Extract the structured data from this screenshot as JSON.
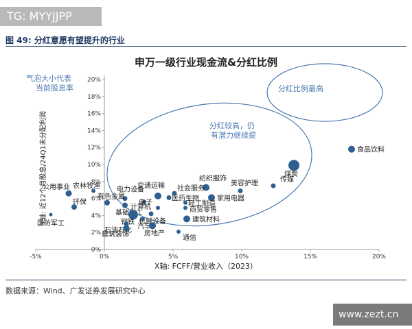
{
  "watermark_top": "TG: MYYJJPP",
  "figure_caption": "图 49:  分红意愿有望提升的行业",
  "source": "数据来源：Wind、广发证券发展研究中心",
  "watermark_bottom": "www.zezt.cn",
  "colors": {
    "bubble": "#2e5f8f",
    "accent": "#4a78b0",
    "navy": "#1f3b63"
  },
  "chart_data": {
    "type": "scatter",
    "title": "申万一级行业现金流&分红比例",
    "xlabel": "X轴: FCFF/营业收入（2023）",
    "ylabel": "Y轴: 近12个月股息/24Q1未分配利润",
    "xlim": [
      -5,
      20
    ],
    "ylim": [
      0,
      20
    ],
    "x_ticks": [
      "-5%",
      "0%",
      "5%",
      "10%",
      "15%",
      "20%"
    ],
    "y_ticks": [
      "0%",
      "2%",
      "4%",
      "6%",
      "8%",
      "10%",
      "12%",
      "14%",
      "16%",
      "18%",
      "20%"
    ],
    "grid": false,
    "bubble_legend": "气泡大小代表当前股息率",
    "annotations": [
      "分红比例最高",
      "分红较高，仍有潜力继续提"
    ],
    "points": [
      {
        "name": "食品饮料",
        "x": 18.0,
        "y": 11.8,
        "size": 5
      },
      {
        "name": "煤炭",
        "x": 13.8,
        "y": 9.9,
        "size": 8
      },
      {
        "name": "传媒",
        "x": 12.3,
        "y": 7.5,
        "size": 3.5
      },
      {
        "name": "美容护理",
        "x": 9.9,
        "y": 6.9,
        "size": 3.5
      },
      {
        "name": "纺织服饰",
        "x": 7.4,
        "y": 7.3,
        "size": 5
      },
      {
        "name": "家用电器",
        "x": 7.8,
        "y": 6.1,
        "size": 5
      },
      {
        "name": "社会服务",
        "x": 5.1,
        "y": 6.6,
        "size": 3.5
      },
      {
        "name": "医药生物",
        "x": 4.7,
        "y": 6.1,
        "size": 3.5
      },
      {
        "name": "轻工制造",
        "x": 5.9,
        "y": 5.5,
        "size": 3
      },
      {
        "name": "商贸零售",
        "x": 5.9,
        "y": 4.9,
        "size": 3
      },
      {
        "name": "建筑材料",
        "x": 6.0,
        "y": 3.6,
        "size": 5
      },
      {
        "name": "交通运输",
        "x": 3.9,
        "y": 6.3,
        "size": 5
      },
      {
        "name": "电力设备",
        "x": 1.5,
        "y": 6.0,
        "size": 3.5
      },
      {
        "name": "电子",
        "x": 2.9,
        "y": 5.6,
        "size": 3
      },
      {
        "name": "计算机",
        "x": 3.9,
        "y": 4.9,
        "size": 3
      },
      {
        "name": "有色金属",
        "x": 0.2,
        "y": 5.5,
        "size": 4
      },
      {
        "name": "农林牧渔",
        "x": -0.8,
        "y": 6.9,
        "size": 3
      },
      {
        "name": "公用事业",
        "x": -2.6,
        "y": 6.6,
        "size": 4.5
      },
      {
        "name": "环保",
        "x": -2.2,
        "y": 5.0,
        "size": 4
      },
      {
        "name": "基础化工",
        "x": 1.5,
        "y": 5.2,
        "size": 4
      },
      {
        "name": "机械设备",
        "x": 3.4,
        "y": 4.2,
        "size": 3.5
      },
      {
        "name": "钢铁",
        "x": 2.1,
        "y": 4.1,
        "size": 7
      },
      {
        "name": "汽车",
        "x": 2.8,
        "y": 3.6,
        "size": 3
      },
      {
        "name": "石油石化",
        "x": 1.6,
        "y": 3.0,
        "size": 3.5
      },
      {
        "name": "建筑装饰",
        "x": 1.6,
        "y": 2.5,
        "size": 4.5
      },
      {
        "name": "房地产",
        "x": 3.5,
        "y": 2.8,
        "size": 5
      },
      {
        "name": "通信",
        "x": 5.4,
        "y": 2.1,
        "size": 3
      },
      {
        "name": "国防军工",
        "x": -3.9,
        "y": 4.1,
        "size": 2.5
      }
    ]
  }
}
